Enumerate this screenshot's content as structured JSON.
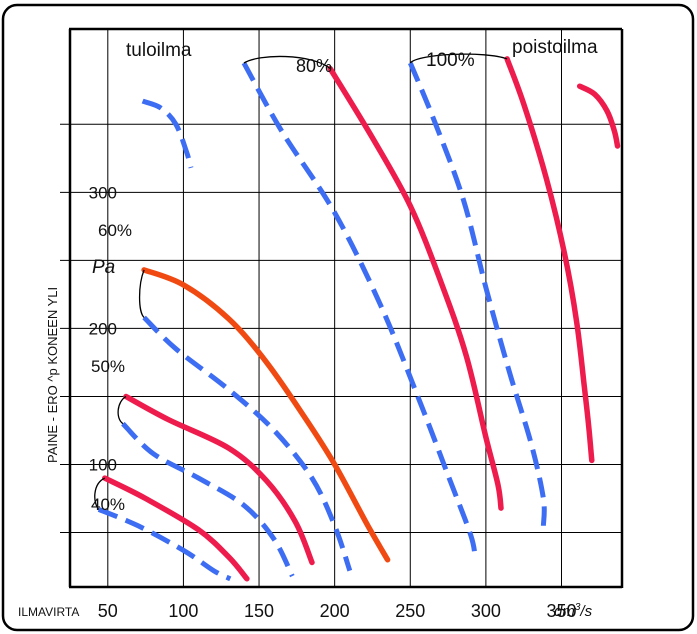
{
  "chart_data": {
    "type": "line",
    "title": "",
    "xlabel": "ILMAVIRTA",
    "xunit_base": "dm",
    "xunit_sup": "3",
    "xunit_tail": "/s",
    "ylabel": "PAINE - ERO  ^p  KONEEN YLI",
    "yunit": "Pa",
    "xlim": [
      25,
      390
    ],
    "ylim": [
      10,
      420
    ],
    "x_ticks": [
      "50",
      "100",
      "150",
      "200",
      "250",
      "300",
      "350"
    ],
    "x_tick_values": [
      50,
      100,
      150,
      200,
      250,
      300,
      350
    ],
    "y_ticks": [
      "100",
      "200",
      "300"
    ],
    "y_tick_values": [
      100,
      200,
      300
    ],
    "grid": true,
    "labels": {
      "supply": "tuloilma",
      "exhaust": "poistoilma",
      "pct40": "40%",
      "pct50": "50%",
      "pct60": "60%",
      "pct80": "80%",
      "pct100": "100%"
    },
    "colors": {
      "supply": "#3d6df2",
      "exhaust": "#ee1c4c",
      "exhaust_60": "#f04a12",
      "grid": "#000000"
    },
    "series": [
      {
        "key": "s40",
        "dash": true,
        "color": "supply",
        "points": [
          [
            44,
            67
          ],
          [
            70,
            55
          ],
          [
            100,
            37
          ],
          [
            120,
            22
          ],
          [
            131,
            16
          ]
        ]
      },
      {
        "key": "e40",
        "dash": false,
        "color": "exhaust",
        "points": [
          [
            48,
            90
          ],
          [
            75,
            75
          ],
          [
            110,
            52
          ],
          [
            130,
            32
          ],
          [
            142,
            16
          ]
        ]
      },
      {
        "key": "s50",
        "dash": true,
        "color": "supply",
        "points": [
          [
            60,
            130
          ],
          [
            80,
            108
          ],
          [
            110,
            90
          ],
          [
            140,
            70
          ],
          [
            160,
            45
          ],
          [
            172,
            18
          ]
        ]
      },
      {
        "key": "e50",
        "dash": false,
        "color": "exhaust",
        "points": [
          [
            62,
            150
          ],
          [
            90,
            133
          ],
          [
            130,
            112
          ],
          [
            155,
            88
          ],
          [
            174,
            58
          ],
          [
            185,
            28
          ]
        ]
      },
      {
        "key": "s60",
        "dash": true,
        "color": "supply",
        "points": [
          [
            74,
            208
          ],
          [
            95,
            185
          ],
          [
            130,
            155
          ],
          [
            160,
            125
          ],
          [
            185,
            90
          ],
          [
            200,
            55
          ],
          [
            210,
            22
          ]
        ]
      },
      {
        "key": "e60",
        "dash": false,
        "color": "exhaust_60",
        "points": [
          [
            74,
            243
          ],
          [
            100,
            232
          ],
          [
            130,
            207
          ],
          [
            155,
            175
          ],
          [
            180,
            135
          ],
          [
            200,
            100
          ],
          [
            222,
            55
          ],
          [
            235,
            30
          ]
        ]
      },
      {
        "key": "s80",
        "dash": true,
        "color": "supply",
        "points": [
          [
            140,
            395
          ],
          [
            165,
            345
          ],
          [
            200,
            285
          ],
          [
            230,
            218
          ],
          [
            255,
            150
          ],
          [
            275,
            92
          ],
          [
            290,
            48
          ],
          [
            293,
            30
          ]
        ]
      },
      {
        "key": "e80",
        "dash": false,
        "color": "exhaust",
        "points": [
          [
            197,
            391
          ],
          [
            225,
            340
          ],
          [
            250,
            290
          ],
          [
            270,
            235
          ],
          [
            287,
            180
          ],
          [
            300,
            120
          ],
          [
            308,
            85
          ],
          [
            310,
            68
          ]
        ]
      },
      {
        "key": "s100",
        "dash": true,
        "color": "supply",
        "points": [
          [
            250,
            395
          ],
          [
            265,
            355
          ],
          [
            285,
            295
          ],
          [
            300,
            230
          ],
          [
            315,
            170
          ],
          [
            330,
            115
          ],
          [
            338,
            75
          ],
          [
            338,
            55
          ]
        ]
      },
      {
        "key": "e100",
        "dash": false,
        "color": "exhaust",
        "points": [
          [
            314,
            398
          ],
          [
            325,
            365
          ],
          [
            340,
            310
          ],
          [
            352,
            255
          ],
          [
            360,
            205
          ],
          [
            365,
            158
          ],
          [
            368,
            128
          ],
          [
            370,
            103
          ]
        ]
      },
      {
        "key": "stop",
        "dash": true,
        "color": "supply",
        "points": [
          [
            73,
            367
          ],
          [
            85,
            362
          ],
          [
            95,
            350
          ],
          [
            102,
            330
          ],
          [
            105,
            318
          ]
        ]
      },
      {
        "key": "etop",
        "dash": false,
        "color": "exhaust",
        "points": [
          [
            362,
            378
          ],
          [
            372,
            372
          ],
          [
            380,
            360
          ],
          [
            385,
            345
          ],
          [
            387,
            334
          ]
        ]
      }
    ]
  }
}
